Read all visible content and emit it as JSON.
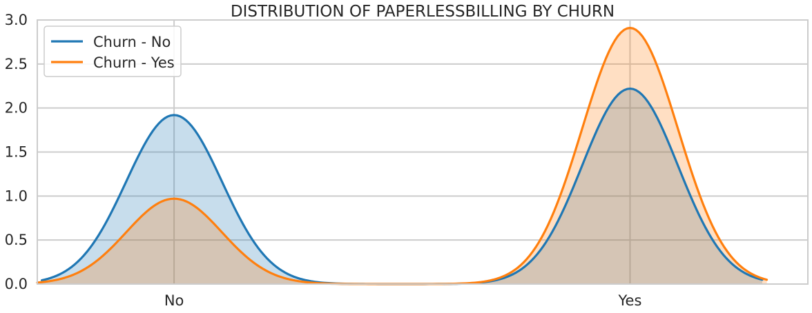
{
  "chart_data": {
    "type": "area",
    "title": "DISTRIBUTION OF PAPERLESSBILLING BY CHURN",
    "xlabel": "",
    "ylabel": "",
    "categories": [
      "No",
      "Yes"
    ],
    "xlim": [
      -0.3,
      1.39
    ],
    "ylim": [
      0,
      3.0
    ],
    "yticks": [
      0.0,
      0.5,
      1.0,
      1.5,
      2.0,
      2.5,
      3.0
    ],
    "ytick_labels": [
      "0.0",
      "0.5",
      "1.0",
      "1.5",
      "2.0",
      "2.5",
      "3.0"
    ],
    "grid": true,
    "legend_position": "top-left",
    "series": [
      {
        "name": "Churn - No",
        "color": "#1f77b4",
        "x_range": [
          -0.29,
          1.29
        ],
        "peaks": [
          {
            "x": 0,
            "y": 1.92
          },
          {
            "x": 1,
            "y": 2.22
          }
        ],
        "bandwidth": 0.105
      },
      {
        "name": "Churn - Yes",
        "color": "#ff7f0e",
        "x_range": [
          -0.3,
          1.3
        ],
        "peaks": [
          {
            "x": 0,
            "y": 0.97
          },
          {
            "x": 1,
            "y": 2.91
          }
        ],
        "bandwidth": 0.105
      }
    ]
  }
}
